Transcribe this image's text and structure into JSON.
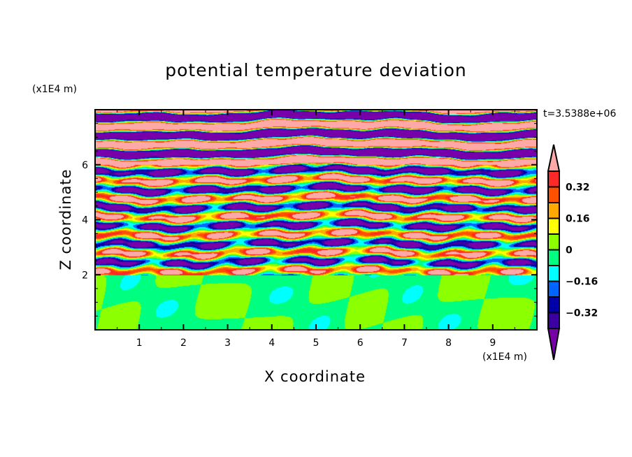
{
  "chart_data": {
    "type": "heatmap",
    "title": "potential temperature deviation",
    "xlabel": "X coordinate",
    "ylabel": "Z coordinate",
    "x_unit": "(x1E4 m)",
    "z_unit": "(x1E4 m)",
    "xlim": [
      0,
      10
    ],
    "ylim": [
      0,
      8
    ],
    "x_ticks": [
      "1",
      "2",
      "3",
      "4",
      "5",
      "6",
      "7",
      "8",
      "9"
    ],
    "y_ticks": [
      "2",
      "4",
      "6"
    ],
    "time_annotation": "t=3.5388e+06",
    "colorbar": {
      "levels": [
        -0.4,
        -0.32,
        -0.24,
        -0.16,
        -0.08,
        0,
        0.08,
        0.16,
        0.24,
        0.32,
        0.4
      ],
      "labels": [
        "0.32",
        "0.16",
        "0",
        "−0.16",
        "−0.32"
      ],
      "label_values": [
        0.32,
        0.16,
        0,
        -0.16,
        -0.32
      ],
      "colors": [
        "#7800a8",
        "#3c00a0",
        "#0000a8",
        "#0064ff",
        "#00ffff",
        "#00ff80",
        "#8cff00",
        "#ffff00",
        "#ffa800",
        "#ff5000",
        "#ff2828",
        "#ffa8a8"
      ],
      "extend": "both"
    }
  }
}
